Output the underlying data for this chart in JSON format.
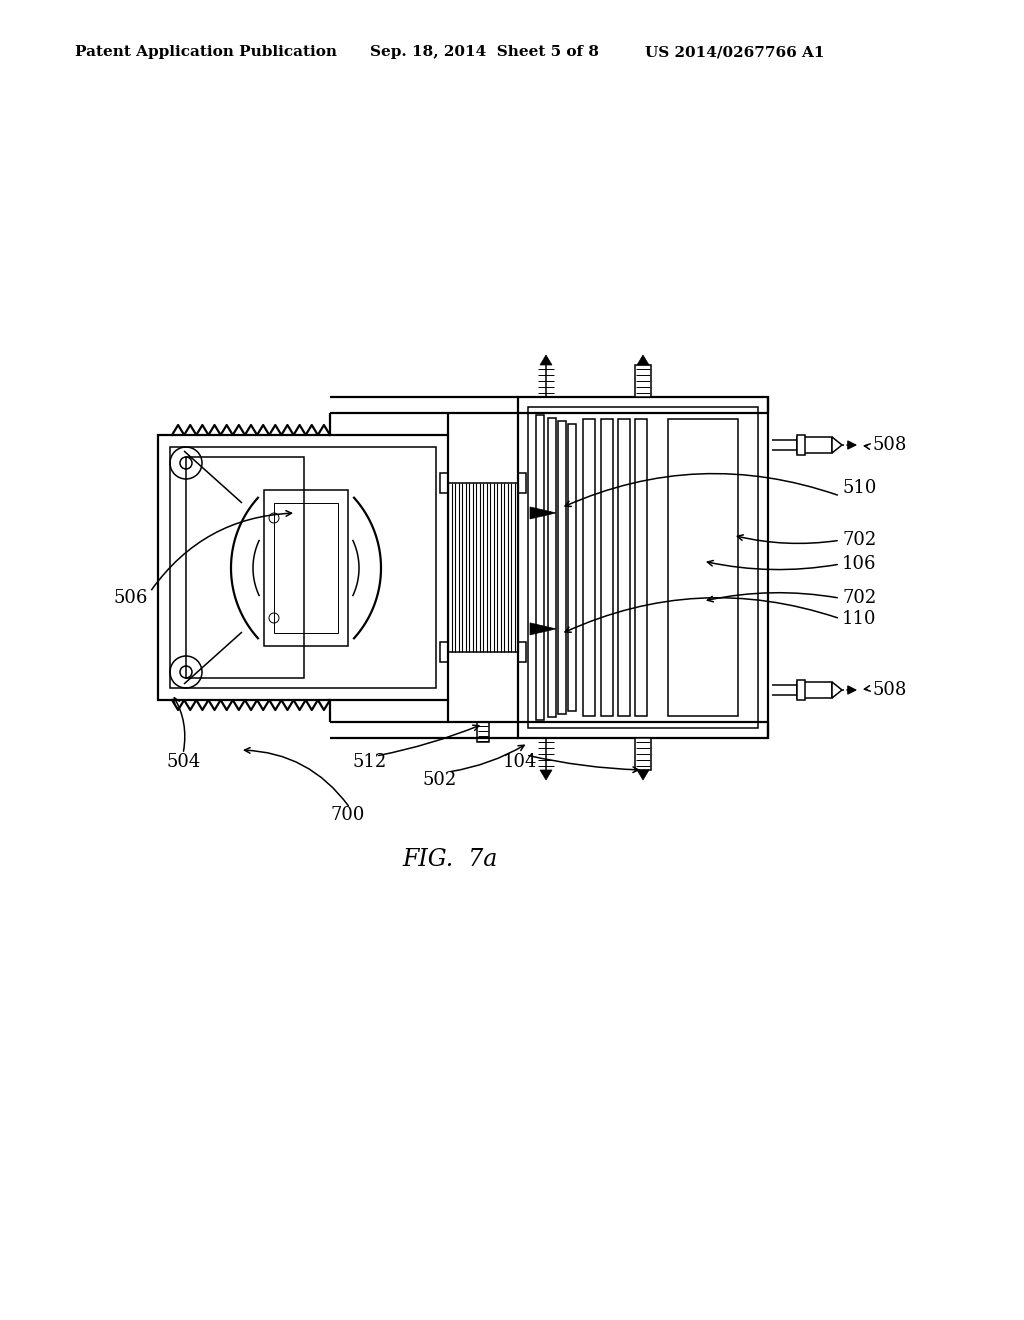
{
  "bg_color": "#ffffff",
  "header_left": "Patent Application Publication",
  "header_mid": "Sep. 18, 2014  Sheet 5 of 8",
  "header_right": "US 2014/0267766 A1",
  "fig_label": "FIG.  7a",
  "label_508_top": "508",
  "label_510": "510",
  "label_702a": "702",
  "label_106": "106",
  "label_702b": "702",
  "label_110": "110",
  "label_508_bot": "508",
  "label_506": "506",
  "label_504": "504",
  "label_512": "512",
  "label_502": "502",
  "label_104": "104",
  "label_700": "700",
  "lw": 1.6,
  "slw": 1.1,
  "tlw": 0.7
}
